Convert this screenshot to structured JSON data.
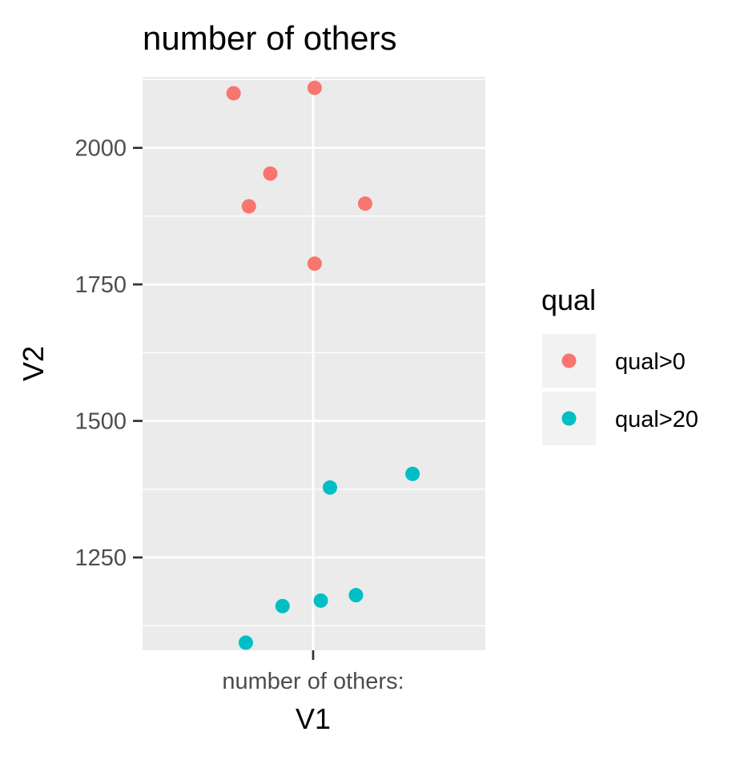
{
  "chart_data": {
    "type": "scatter",
    "title": "number of others",
    "xlabel": "V1",
    "ylabel": "V2",
    "x_categories": [
      "number of others:"
    ],
    "ylim": [
      1080,
      2130
    ],
    "y_ticks": [
      1250,
      1500,
      1750,
      2000
    ],
    "y_minor_ticks": [
      1125,
      1375,
      1625,
      1875,
      2125
    ],
    "grid": true,
    "legend": {
      "title": "qual",
      "placement": "right"
    },
    "series": [
      {
        "name": "qual>0",
        "color": "#F8766D",
        "points": [
          {
            "x": -0.52,
            "y": 2100
          },
          {
            "x": 0.01,
            "y": 2110
          },
          {
            "x": -0.28,
            "y": 1953
          },
          {
            "x": -0.42,
            "y": 1893
          },
          {
            "x": 0.34,
            "y": 1898
          },
          {
            "x": 0.01,
            "y": 1788
          }
        ]
      },
      {
        "name": "qual>20",
        "color": "#00BFC4",
        "points": [
          {
            "x": 0.65,
            "y": 1403
          },
          {
            "x": 0.11,
            "y": 1378
          },
          {
            "x": 0.28,
            "y": 1181
          },
          {
            "x": 0.05,
            "y": 1171
          },
          {
            "x": -0.2,
            "y": 1161
          },
          {
            "x": -0.44,
            "y": 1094
          }
        ]
      }
    ]
  }
}
